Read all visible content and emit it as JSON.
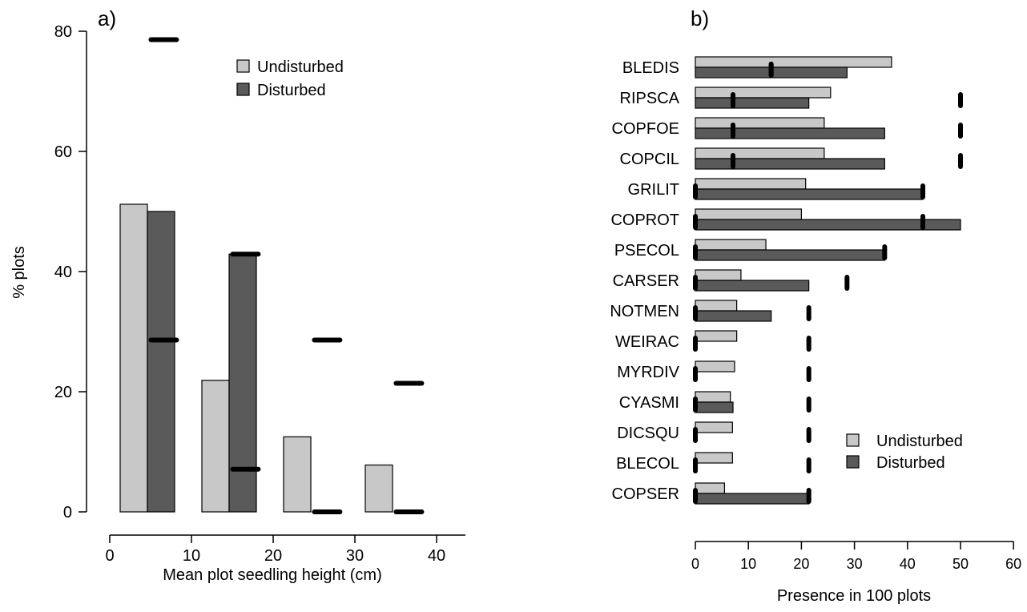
{
  "colors": {
    "undisturbed": "#c8c8c8",
    "disturbed": "#5a5a5a",
    "marker": "#000000",
    "stroke": "#000000"
  },
  "chart_data": [
    {
      "type": "bar",
      "panel_label": "a)",
      "xlabel": "Mean plot seedling height (cm)",
      "ylabel": "% plots",
      "xlim": [
        0,
        40
      ],
      "ylim": [
        0,
        80
      ],
      "xticks": [
        "0",
        "10",
        "20",
        "30",
        "40"
      ],
      "yticks": [
        "0",
        "20",
        "40",
        "60",
        "80"
      ],
      "legend": {
        "position": "top-center",
        "entries": [
          "Undisturbed",
          "Disturbed"
        ]
      },
      "bin_centers": [
        5,
        15,
        25,
        35
      ],
      "series": [
        {
          "name": "Undisturbed",
          "values": [
            51.2,
            21.9,
            12.5,
            7.8
          ]
        },
        {
          "name": "Disturbed",
          "values": [
            50.0,
            42.9,
            0,
            0
          ]
        }
      ],
      "null_markers": {
        "description": "black dashes at y = low and high values per bin",
        "bins": [
          {
            "x": 7,
            "values": [
              28.6,
              78.6
            ]
          },
          {
            "x": 17,
            "values": [
              7.1,
              42.9
            ]
          },
          {
            "x": 27,
            "values": [
              0,
              28.6
            ]
          },
          {
            "x": 37,
            "values": [
              0,
              21.4
            ]
          }
        ]
      }
    },
    {
      "type": "bar",
      "orientation": "horizontal",
      "panel_label": "b)",
      "xlabel": "Presence in 100 plots",
      "xlim": [
        0,
        60
      ],
      "xticks": [
        "0",
        "10",
        "20",
        "30",
        "40",
        "50",
        "60"
      ],
      "legend": {
        "position": "bottom-right",
        "entries": [
          "Undisturbed",
          "Disturbed"
        ]
      },
      "categories": [
        "BLEDIS",
        "RIPSCA",
        "COPFOE",
        "COPCIL",
        "GRILIT",
        "COPROT",
        "PSECOL",
        "CARSER",
        "NOTMEN",
        "WEIRAC",
        "MYRDIV",
        "CYASMI",
        "DICSQU",
        "BLECOL",
        "COPSER"
      ],
      "series": [
        {
          "name": "Undisturbed",
          "values": [
            37.0,
            25.5,
            24.3,
            24.3,
            20.8,
            20.0,
            13.3,
            8.6,
            7.8,
            7.8,
            7.4,
            6.6,
            7.0,
            7.0,
            5.5
          ]
        },
        {
          "name": "Disturbed",
          "values": [
            28.6,
            21.4,
            35.7,
            35.7,
            42.9,
            50.0,
            35.7,
            21.4,
            14.3,
            0,
            0,
            7.1,
            0,
            0,
            21.4
          ]
        }
      ],
      "null_markers": {
        "description": "black dashes at low and high presence values per species",
        "values": [
          [
            14.3,
            14.3
          ],
          [
            7.1,
            50.0
          ],
          [
            7.1,
            50.0
          ],
          [
            7.1,
            50.0
          ],
          [
            0,
            42.9
          ],
          [
            0,
            42.9
          ],
          [
            0,
            35.7
          ],
          [
            0,
            28.6
          ],
          [
            0,
            21.4
          ],
          [
            0,
            21.4
          ],
          [
            0,
            21.4
          ],
          [
            0,
            21.4
          ],
          [
            0,
            21.4
          ],
          [
            0,
            21.4
          ],
          [
            0,
            21.4
          ]
        ]
      }
    }
  ]
}
